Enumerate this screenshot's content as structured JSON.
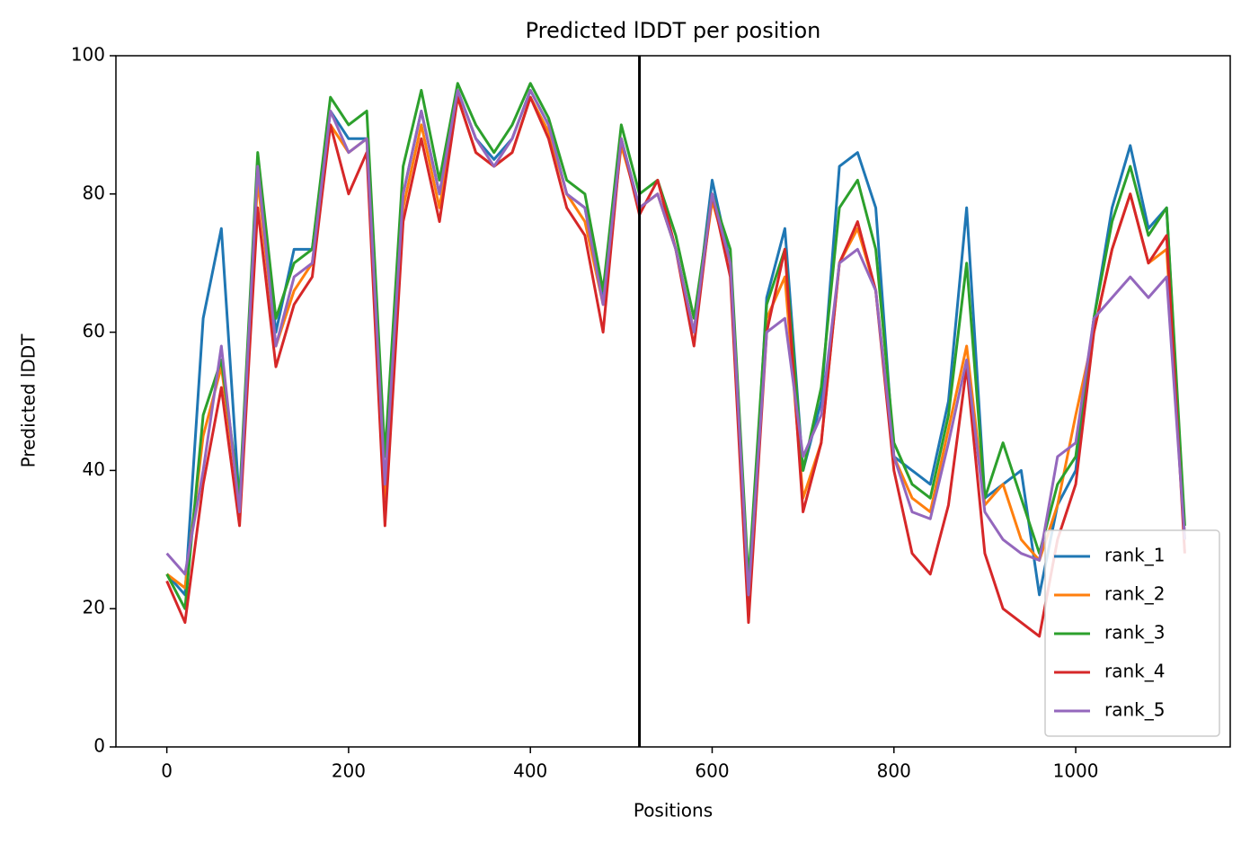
{
  "chart_data": {
    "type": "line",
    "title": "Predicted lDDT per position",
    "xlabel": "Positions",
    "ylabel": "Predicted lDDT",
    "x": [
      0,
      20,
      40,
      60,
      80,
      100,
      120,
      140,
      160,
      180,
      200,
      220,
      240,
      260,
      280,
      300,
      320,
      340,
      360,
      380,
      400,
      420,
      440,
      460,
      480,
      500,
      520,
      540,
      560,
      580,
      600,
      620,
      640,
      660,
      680,
      700,
      720,
      740,
      760,
      780,
      800,
      820,
      840,
      860,
      880,
      900,
      920,
      940,
      960,
      980,
      1000,
      1020,
      1040,
      1060,
      1080,
      1100,
      1120
    ],
    "series": [
      {
        "name": "rank_1",
        "color": "#1f77b4",
        "values": [
          25,
          22,
          62,
          75,
          35,
          85,
          60,
          72,
          72,
          92,
          88,
          88,
          36,
          80,
          92,
          80,
          95,
          88,
          85,
          88,
          95,
          90,
          80,
          78,
          65,
          88,
          78,
          80,
          72,
          60,
          82,
          70,
          20,
          65,
          75,
          40,
          50,
          84,
          86,
          78,
          42,
          40,
          38,
          50,
          78,
          36,
          38,
          40,
          22,
          35,
          40,
          62,
          78,
          87,
          75,
          78,
          30
        ]
      },
      {
        "name": "rank_2",
        "color": "#ff7f0e",
        "values": [
          25,
          23,
          45,
          55,
          35,
          82,
          58,
          66,
          70,
          90,
          86,
          88,
          36,
          78,
          90,
          78,
          94,
          86,
          84,
          86,
          94,
          89,
          80,
          76,
          64,
          87,
          78,
          80,
          72,
          60,
          79,
          70,
          22,
          62,
          68,
          36,
          44,
          70,
          75,
          66,
          42,
          36,
          34,
          46,
          58,
          35,
          38,
          30,
          27,
          35,
          48,
          60,
          72,
          80,
          70,
          72,
          30
        ]
      },
      {
        "name": "rank_3",
        "color": "#2ca02c",
        "values": [
          25,
          20,
          48,
          56,
          36,
          86,
          62,
          70,
          72,
          94,
          90,
          92,
          42,
          84,
          95,
          82,
          96,
          90,
          86,
          90,
          96,
          91,
          82,
          80,
          66,
          90,
          80,
          82,
          74,
          62,
          80,
          72,
          24,
          64,
          72,
          40,
          52,
          78,
          82,
          72,
          44,
          38,
          36,
          48,
          70,
          36,
          44,
          36,
          28,
          38,
          42,
          62,
          76,
          84,
          74,
          78,
          32
        ]
      },
      {
        "name": "rank_4",
        "color": "#d62728",
        "values": [
          24,
          18,
          38,
          52,
          32,
          78,
          55,
          64,
          68,
          90,
          80,
          86,
          32,
          76,
          88,
          76,
          94,
          86,
          84,
          86,
          94,
          88,
          78,
          74,
          60,
          88,
          77,
          82,
          72,
          58,
          80,
          68,
          18,
          60,
          72,
          34,
          44,
          70,
          76,
          66,
          40,
          28,
          25,
          35,
          55,
          28,
          20,
          18,
          16,
          30,
          38,
          60,
          72,
          80,
          70,
          74,
          28
        ]
      },
      {
        "name": "rank_5",
        "color": "#9467bd",
        "values": [
          28,
          25,
          40,
          58,
          34,
          84,
          58,
          68,
          70,
          92,
          86,
          88,
          38,
          80,
          92,
          80,
          95,
          88,
          84,
          88,
          95,
          90,
          80,
          78,
          64,
          88,
          78,
          80,
          72,
          60,
          80,
          70,
          22,
          60,
          62,
          42,
          48,
          70,
          72,
          66,
          42,
          34,
          33,
          44,
          56,
          34,
          30,
          28,
          27,
          42,
          44,
          62,
          65,
          68,
          65,
          68,
          30
        ]
      }
    ],
    "vline": 520,
    "xlim": [
      -56,
      1170
    ],
    "ylim": [
      0,
      100
    ],
    "xticks": [
      0,
      200,
      400,
      600,
      800,
      1000
    ],
    "yticks": [
      0,
      20,
      40,
      60,
      80,
      100
    ],
    "legend": "lower right"
  }
}
